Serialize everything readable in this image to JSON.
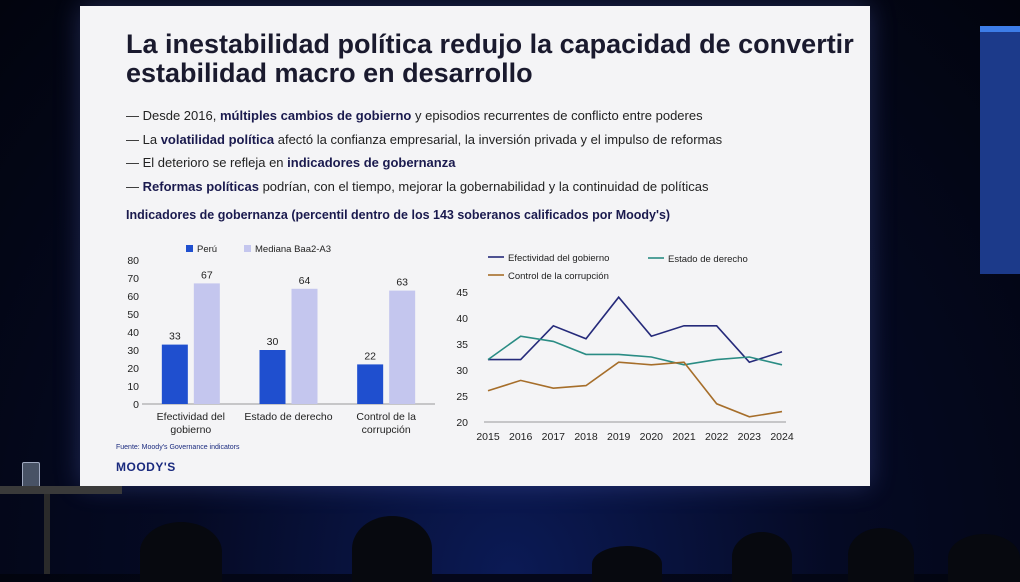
{
  "slide": {
    "title": "La inestabilidad política redujo la capacidad de convertir estabilidad macro en desarrollo",
    "bullets": [
      {
        "parts": [
          {
            "t": "— Desde 2016, "
          },
          {
            "t": "múltiples cambios de gobierno",
            "b": true
          },
          {
            "t": " y episodios recurrentes de conflicto entre poderes"
          }
        ]
      },
      {
        "parts": [
          {
            "t": "— La "
          },
          {
            "t": "volatilidad política",
            "b": true
          },
          {
            "t": " afectó la confianza empresarial, la inversión privada y el impulso de reformas"
          }
        ]
      },
      {
        "parts": [
          {
            "t": "— El deterioro se refleja en "
          },
          {
            "t": "indicadores de gobernanza",
            "b": true
          }
        ]
      },
      {
        "parts": [
          {
            "t": "— "
          },
          {
            "t": "Reformas políticas",
            "b": true
          },
          {
            "t": " podrían, con el tiempo, mejorar la gobernabilidad y la continuidad de políticas"
          }
        ]
      }
    ],
    "chart_title": "Indicadores de gobernanza (percentil dentro de los 143 soberanos calificados por Moody's)",
    "source": "Fuente: Moody's Governance indicators",
    "logo": "MOODY'S"
  },
  "colors": {
    "peru": "#1f4fcf",
    "median": "#c4c6ee",
    "efectividad": "#252a7a",
    "estado": "#2a8c84",
    "corrupcion": "#a66e2a"
  },
  "chart_data": [
    {
      "type": "bar",
      "title": "",
      "categories": [
        "Efectividad del gobierno",
        "Estado de derecho",
        "Control de la corrupción"
      ],
      "category_lines": [
        [
          "Efectividad del",
          "gobierno"
        ],
        [
          "Estado de derecho"
        ],
        [
          "Control de la",
          "corrupción"
        ]
      ],
      "series": [
        {
          "name": "Perú",
          "values": [
            33,
            30,
            22
          ]
        },
        {
          "name": "Mediana Baa2-A3",
          "values": [
            67,
            64,
            63
          ]
        }
      ],
      "ylim": [
        0,
        80
      ],
      "yticks": [
        0,
        10,
        20,
        30,
        40,
        50,
        60,
        70,
        80
      ],
      "legend": "top-left",
      "grid": false
    },
    {
      "type": "line",
      "title": "",
      "x": [
        2015,
        2016,
        2017,
        2018,
        2019,
        2020,
        2021,
        2022,
        2023,
        2024
      ],
      "series": [
        {
          "name": "Efectividad del gobierno",
          "values": [
            32,
            32,
            38.5,
            36,
            44,
            36.5,
            38.5,
            38.5,
            31.5,
            33.5
          ]
        },
        {
          "name": "Estado de derecho",
          "values": [
            32,
            36.5,
            35.5,
            33,
            33,
            32.5,
            31,
            32,
            32.5,
            31
          ]
        },
        {
          "name": "Control de la corrupción",
          "values": [
            26,
            28,
            26.5,
            27,
            31.5,
            31,
            31.5,
            23.5,
            21,
            22
          ]
        }
      ],
      "ylim": [
        20,
        45
      ],
      "yticks": [
        20,
        25,
        30,
        35,
        40,
        45
      ],
      "legend": "top",
      "grid": false
    }
  ]
}
